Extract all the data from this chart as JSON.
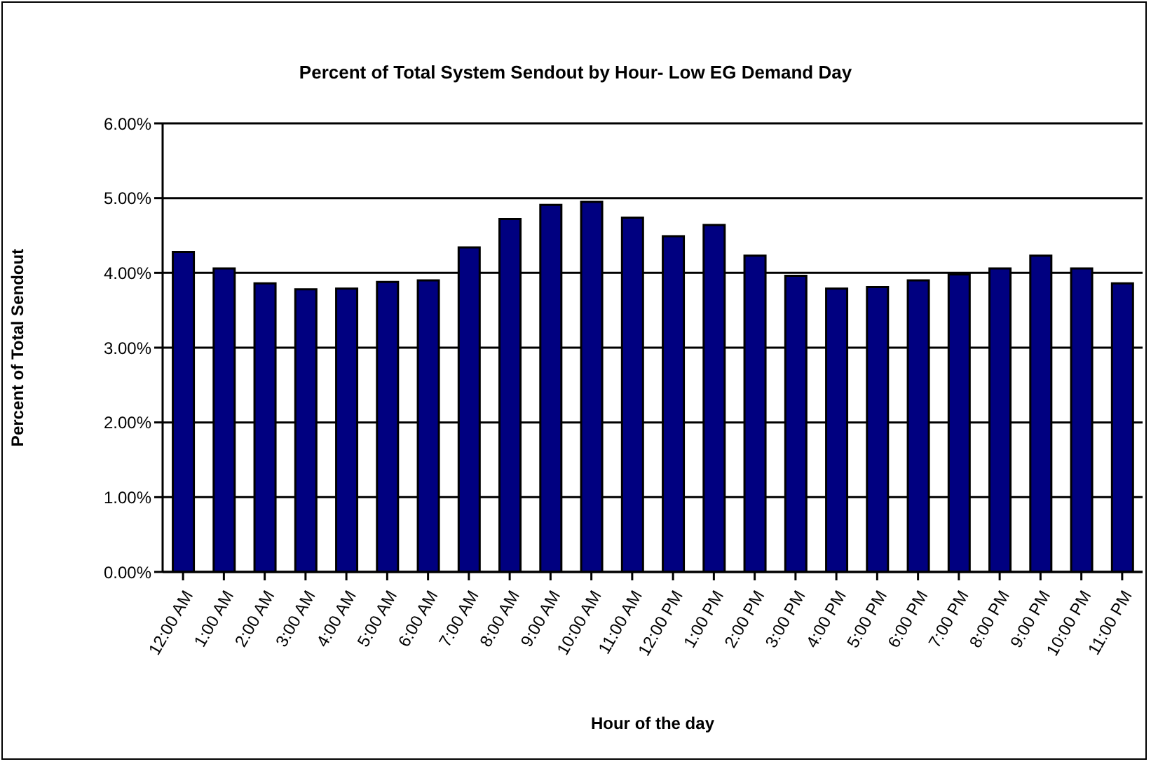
{
  "chart_data": {
    "type": "bar",
    "title": "Percent of Total System Sendout by Hour- Low EG Demand Day",
    "xlabel": "Hour of the day",
    "ylabel": "Percent of Total Sendout",
    "categories": [
      "12:00 AM",
      "1:00 AM",
      "2:00 AM",
      "3:00 AM",
      "4:00 AM",
      "5:00 AM",
      "6:00 AM",
      "7:00 AM",
      "8:00 AM",
      "9:00 AM",
      "10:00 AM",
      "11:00 AM",
      "12:00 PM",
      "1:00 PM",
      "2:00 PM",
      "3:00 PM",
      "4:00 PM",
      "5:00 PM",
      "6:00 PM",
      "7:00 PM",
      "8:00 PM",
      "9:00 PM",
      "10:00 PM",
      "11:00 PM"
    ],
    "values": [
      4.28,
      4.06,
      3.86,
      3.78,
      3.79,
      3.88,
      3.9,
      4.34,
      4.72,
      4.91,
      4.95,
      4.74,
      4.49,
      4.64,
      4.23,
      3.96,
      3.79,
      3.81,
      3.9,
      3.98,
      4.06,
      4.23,
      4.06,
      3.86
    ],
    "color": "#000080",
    "ylim": [
      0,
      6
    ],
    "yticks": [
      {
        "value": 0,
        "label": "0.00%"
      },
      {
        "value": 1,
        "label": "1.00%"
      },
      {
        "value": 2,
        "label": "2.00%"
      },
      {
        "value": 3,
        "label": "3.00%"
      },
      {
        "value": 4,
        "label": "4.00%"
      },
      {
        "value": 5,
        "label": "5.00%"
      },
      {
        "value": 6,
        "label": "6.00%"
      }
    ],
    "grid": "y",
    "legend": false
  }
}
